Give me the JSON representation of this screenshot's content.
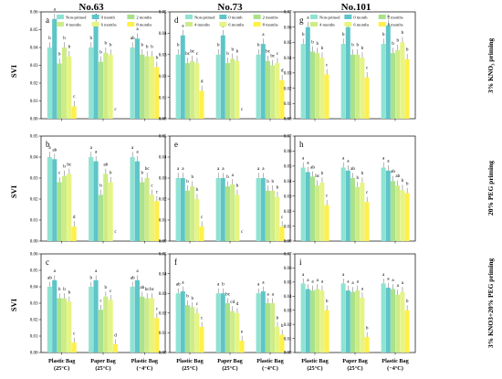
{
  "column_titles": [
    "No.63",
    "No.73",
    "No.101"
  ],
  "row_labels": [
    "3% KNO₃ priming",
    "20% PEG priming",
    "3% KNO3+20% PEG priming"
  ],
  "colors": [
    "#8fe3d3",
    "#5ec5c8",
    "#a9e28a",
    "#cdec88",
    "#e6f483",
    "#fff04a"
  ],
  "chart_data": {
    "type": "bar",
    "ylabel": "SVI",
    "categories": [
      [
        "Plastic Bag",
        "(25°C)"
      ],
      [
        "Paper Bag",
        "(25°C)"
      ],
      [
        "Plastic Bag",
        "(−4°C)"
      ]
    ],
    "series": [
      {
        "name": "Non-primed"
      },
      {
        "name": "0 month"
      },
      {
        "name": "2 months"
      },
      {
        "name": "4 months"
      },
      {
        "name": "6 months"
      },
      {
        "name": "8 months"
      }
    ],
    "panels": [
      {
        "letter": "a",
        "ylim": [
          0,
          0.06
        ],
        "ticks": [
          "0.00",
          "0.01",
          "0.02",
          "0.03",
          "0.04",
          "0.05",
          "0.06"
        ],
        "values": [
          [
            0.04,
            0.056,
            0.031,
            0.04,
            0.035,
            0.007
          ],
          [
            0.04,
            0.053,
            0.032,
            0.037,
            0.036,
            0.0
          ],
          [
            0.04,
            0.045,
            0.036,
            0.035,
            0.035,
            0.029
          ]
        ],
        "sig": [
          [
            "b",
            "a",
            "b",
            "b",
            "b",
            "c"
          ],
          [
            "b",
            "a",
            "b",
            "b",
            "b",
            "c"
          ],
          [
            "ab",
            "a",
            "b",
            "b",
            "b",
            "b"
          ]
        ],
        "legend": true
      },
      {
        "letter": "d",
        "ylim": [
          0,
          0.05
        ],
        "ticks": [
          "0.00",
          "0.01",
          "0.02",
          "0.03",
          "0.04",
          "0.05"
        ],
        "values": [
          [
            0.03,
            0.039,
            0.026,
            0.027,
            0.026,
            0.013
          ],
          [
            0.03,
            0.039,
            0.026,
            0.028,
            0.027,
            0.0
          ],
          [
            0.03,
            0.035,
            0.027,
            0.025,
            0.026,
            0.018
          ]
        ],
        "sig": [
          [
            "b",
            "a",
            "bc",
            "bc",
            "c",
            "d"
          ],
          [
            "b",
            "a",
            "b",
            "b",
            "b",
            "c"
          ],
          [
            "b",
            "a",
            "bc",
            "bc",
            "c",
            "d"
          ]
        ],
        "legend": true
      },
      {
        "letter": "g",
        "ylim": [
          0,
          0.07
        ],
        "ticks": [
          "0.00",
          "0.01",
          "0.02",
          "0.03",
          "0.04",
          "0.05",
          "0.06",
          "0.07"
        ],
        "values": [
          [
            0.049,
            0.06,
            0.044,
            0.043,
            0.04,
            0.029
          ],
          [
            0.049,
            0.06,
            0.042,
            0.042,
            0.04,
            0.027
          ],
          [
            0.049,
            0.061,
            0.043,
            0.045,
            0.05,
            0.039
          ]
        ],
        "sig": [
          [
            "b",
            "a",
            "b",
            "b",
            "b",
            "c"
          ],
          [
            "b",
            "a",
            "b",
            "b",
            "b",
            "c"
          ],
          [
            "b",
            "a",
            "b",
            "b",
            "b",
            "b"
          ]
        ],
        "legend": true
      },
      {
        "letter": "b",
        "ylim": [
          0,
          0.05
        ],
        "ticks": [
          "0.00",
          "0.01",
          "0.02",
          "0.03",
          "0.04",
          "0.05"
        ],
        "values": [
          [
            0.04,
            0.039,
            0.028,
            0.031,
            0.032,
            0.007
          ],
          [
            0.04,
            0.038,
            0.022,
            0.032,
            0.028,
            0.0
          ],
          [
            0.04,
            0.038,
            0.028,
            0.03,
            0.022,
            0.019
          ]
        ],
        "sig": [
          [
            "a",
            "ab",
            "c",
            "b",
            "bc",
            "d"
          ],
          [
            "a",
            "a",
            "b",
            "ab",
            "b",
            "c"
          ],
          [
            "a",
            "a",
            "b",
            "bc",
            "c",
            "c"
          ]
        ],
        "legend": false
      },
      {
        "letter": "e",
        "ylim": [
          0,
          0.05
        ],
        "ticks": [
          "0.00",
          "0.01",
          "0.02",
          "0.03",
          "0.04",
          "0.05"
        ],
        "values": [
          [
            0.03,
            0.03,
            0.024,
            0.026,
            0.02,
            0.007
          ],
          [
            0.03,
            0.03,
            0.026,
            0.027,
            0.022,
            0.0
          ],
          [
            0.03,
            0.03,
            0.024,
            0.024,
            0.021,
            0.007
          ]
        ],
        "sig": [
          [
            "a",
            "a",
            "b",
            "b",
            "b",
            "c"
          ],
          [
            "a",
            "a",
            "b",
            "a",
            "b",
            "c"
          ],
          [
            "a",
            "a",
            "b",
            "b",
            "b",
            "c"
          ]
        ],
        "legend": false
      },
      {
        "letter": "h",
        "ylim": [
          0,
          0.07
        ],
        "ticks": [
          "0.00",
          "0.01",
          "0.02",
          "0.03",
          "0.04",
          "0.05",
          "0.06",
          "0.07"
        ],
        "values": [
          [
            0.049,
            0.046,
            0.043,
            0.037,
            0.039,
            0.024
          ],
          [
            0.049,
            0.047,
            0.042,
            0.036,
            0.039,
            0.026
          ],
          [
            0.049,
            0.047,
            0.04,
            0.037,
            0.034,
            0.032
          ]
        ],
        "sig": [
          [
            "a",
            "a",
            "ab",
            "bc",
            "b",
            "c"
          ],
          [
            "a",
            "a",
            "ab",
            "b",
            "b",
            "c"
          ],
          [
            "a",
            "a",
            "ab",
            "ab",
            "b",
            "b"
          ]
        ],
        "legend": false
      },
      {
        "letter": "c",
        "ylim": [
          0,
          0.06
        ],
        "ticks": [
          "0.00",
          "0.01",
          "0.02",
          "0.03",
          "0.04",
          "0.05",
          "0.06"
        ],
        "values": [
          [
            0.04,
            0.044,
            0.033,
            0.033,
            0.031,
            0.006
          ],
          [
            0.04,
            0.044,
            0.026,
            0.034,
            0.032,
            0.005
          ],
          [
            0.04,
            0.044,
            0.034,
            0.033,
            0.033,
            0.021
          ]
        ],
        "sig": [
          [
            "ab",
            "a",
            "b",
            "b",
            "b",
            "c"
          ],
          [
            "b",
            "a",
            "c",
            "b",
            "c",
            "d"
          ],
          [
            "ab",
            "a",
            "ab",
            "bc",
            "bc",
            "c"
          ]
        ],
        "legend": false
      },
      {
        "letter": "f",
        "ylim": [
          0,
          0.05
        ],
        "ticks": [
          "0.00",
          "0.01",
          "0.02",
          "0.03",
          "0.04",
          "0.05"
        ],
        "values": [
          [
            0.03,
            0.031,
            0.024,
            0.023,
            0.02,
            0.013
          ],
          [
            0.03,
            0.03,
            0.025,
            0.021,
            0.02,
            0.006
          ],
          [
            0.03,
            0.031,
            0.025,
            0.025,
            0.013,
            0.009
          ]
        ],
        "sig": [
          [
            "ab",
            "a",
            "b",
            "b",
            "c",
            "c"
          ],
          [
            "a",
            "b",
            "bc",
            "cd",
            "d",
            "e"
          ],
          [
            "a",
            "a",
            "a",
            "a",
            "b",
            "b"
          ]
        ],
        "legend": false
      },
      {
        "letter": "i",
        "ylim": [
          0,
          0.07
        ],
        "ticks": [
          "0.00",
          "0.01",
          "0.02",
          "0.03",
          "0.04",
          "0.05",
          "0.06",
          "0.07"
        ],
        "values": [
          [
            0.049,
            0.045,
            0.044,
            0.045,
            0.044,
            0.03
          ],
          [
            0.049,
            0.044,
            0.043,
            0.044,
            0.039,
            0.011
          ],
          [
            0.049,
            0.046,
            0.045,
            0.041,
            0.043,
            0.03
          ]
        ],
        "sig": [
          [
            "a",
            "a",
            "a",
            "a",
            "a",
            "b"
          ],
          [
            "a",
            "a",
            "a",
            "a",
            "a",
            "b"
          ],
          [
            "a",
            "a",
            "a",
            "a",
            "a",
            "b"
          ]
        ],
        "legend": false
      }
    ]
  }
}
